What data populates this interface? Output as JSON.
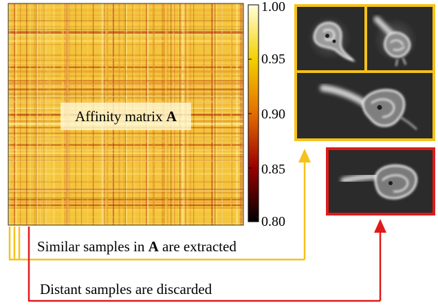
{
  "matrix": {
    "label_text": "Affinity matrix ",
    "label_symbol": "A"
  },
  "colorbar": {
    "ticks": [
      "1.00",
      "0.95",
      "0.90",
      "0.85",
      "0.80"
    ],
    "colors": {
      "top": "#ffffdc",
      "upper": "#f5d000",
      "mid": "#e46e00",
      "lower": "#9b0000",
      "bottom": "#000000"
    }
  },
  "captions": {
    "similar_prefix": "Similar samples in ",
    "similar_symbol": "A",
    "similar_suffix": " are extracted",
    "distant": "Distant samples are discarded"
  },
  "colors": {
    "similar": "#f5c21b",
    "distant": "#e01a1a"
  }
}
